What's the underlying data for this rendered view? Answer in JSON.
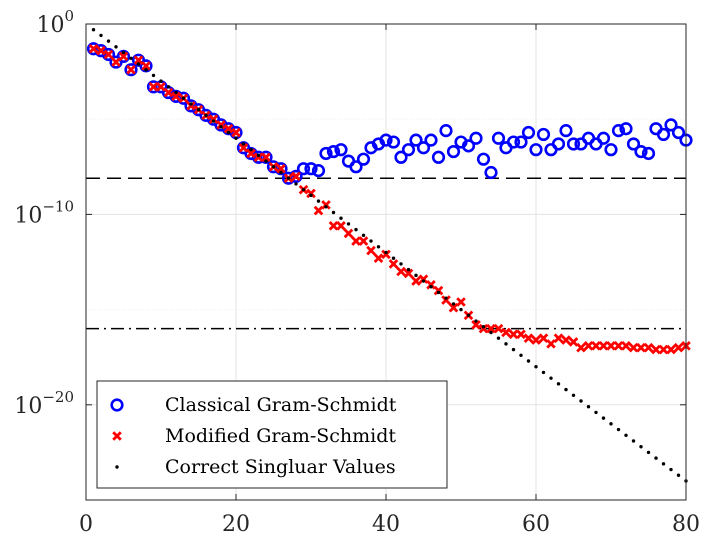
{
  "chart_data": {
    "type": "scatter",
    "title": "",
    "xlabel": "",
    "ylabel": "",
    "xlim": [
      0,
      80
    ],
    "ylim_log10": [
      -25,
      0
    ],
    "yscale": "log",
    "grid": true,
    "legend_position": "bottom-left",
    "x_ticks": [
      {
        "value": 0,
        "label": "0"
      },
      {
        "value": 20,
        "label": "20"
      },
      {
        "value": 40,
        "label": "40"
      },
      {
        "value": 60,
        "label": "60"
      },
      {
        "value": 80,
        "label": "80"
      }
    ],
    "y_ticks": [
      {
        "exp": 0,
        "base": "10",
        "sup": "0"
      },
      {
        "exp": -10,
        "base": "10",
        "sup": "−10"
      },
      {
        "exp": -20,
        "base": "10",
        "sup": "−20"
      }
    ],
    "reference_lines": [
      {
        "style": "dashed",
        "y_log10": -8.1
      },
      {
        "style": "dashdot",
        "y_log10": -16.0
      }
    ],
    "series": [
      {
        "name": "Classical Gram-Schmidt",
        "marker": "circle",
        "color": "#0000ff",
        "x": [
          1,
          2,
          3,
          4,
          5,
          6,
          7,
          8,
          9,
          10,
          11,
          12,
          13,
          14,
          15,
          16,
          17,
          18,
          19,
          20,
          21,
          22,
          23,
          24,
          25,
          26,
          27,
          28,
          29,
          30,
          31,
          32,
          33,
          34,
          35,
          36,
          37,
          38,
          39,
          40,
          41,
          42,
          43,
          44,
          45,
          46,
          47,
          48,
          49,
          50,
          51,
          52,
          53,
          54,
          55,
          56,
          57,
          58,
          59,
          60,
          61,
          62,
          63,
          64,
          65,
          66,
          67,
          68,
          69,
          70,
          71,
          72,
          73,
          74,
          75,
          76,
          77,
          78,
          79,
          80
        ],
        "y_log10": [
          -1.3,
          -1.4,
          -1.6,
          -2.0,
          -1.7,
          -2.4,
          -1.9,
          -2.2,
          -3.3,
          -3.3,
          -3.6,
          -3.8,
          -3.9,
          -4.3,
          -4.5,
          -4.8,
          -5.0,
          -5.3,
          -5.5,
          -5.7,
          -6.5,
          -6.8,
          -7.0,
          -7.0,
          -7.5,
          -7.6,
          -8.1,
          -8.0,
          -7.6,
          -7.6,
          -7.7,
          -6.8,
          -6.7,
          -6.6,
          -7.2,
          -7.5,
          -7.1,
          -6.5,
          -6.3,
          -6.1,
          -6.2,
          -7.0,
          -6.6,
          -6.1,
          -6.5,
          -6.1,
          -7.0,
          -5.6,
          -6.7,
          -6.2,
          -6.4,
          -6.0,
          -7.1,
          -7.8,
          -6.0,
          -6.5,
          -6.2,
          -6.2,
          -5.7,
          -6.6,
          -5.8,
          -6.6,
          -6.3,
          -5.6,
          -6.3,
          -6.3,
          -6.0,
          -6.3,
          -6.0,
          -6.6,
          -5.6,
          -5.5,
          -6.3,
          -6.7,
          -6.8,
          -5.5,
          -5.8,
          -5.3,
          -5.7,
          -6.1
        ]
      },
      {
        "name": "Modified Gram-Schmidt",
        "marker": "cross",
        "color": "#ff0000",
        "x": [
          1,
          2,
          3,
          4,
          5,
          6,
          7,
          8,
          9,
          10,
          11,
          12,
          13,
          14,
          15,
          16,
          17,
          18,
          19,
          20,
          21,
          22,
          23,
          24,
          25,
          26,
          27,
          28,
          29,
          30,
          31,
          32,
          33,
          34,
          35,
          36,
          37,
          38,
          39,
          40,
          41,
          42,
          43,
          44,
          45,
          46,
          47,
          48,
          49,
          50,
          51,
          52,
          53,
          54,
          55,
          56,
          57,
          58,
          59,
          60,
          61,
          62,
          63,
          64,
          65,
          66,
          67,
          68,
          69,
          70,
          71,
          72,
          73,
          74,
          75,
          76,
          77,
          78,
          79,
          80
        ],
        "y_log10": [
          -1.3,
          -1.4,
          -1.6,
          -2.0,
          -1.7,
          -2.4,
          -1.9,
          -2.2,
          -3.3,
          -3.3,
          -3.6,
          -3.8,
          -3.9,
          -4.3,
          -4.5,
          -4.8,
          -5.0,
          -5.3,
          -5.5,
          -5.7,
          -6.5,
          -6.8,
          -7.0,
          -7.0,
          -7.5,
          -7.6,
          -8.1,
          -8.0,
          -8.7,
          -8.9,
          -9.8,
          -9.5,
          -10.6,
          -10.6,
          -11.0,
          -11.4,
          -11.4,
          -11.9,
          -12.3,
          -12.1,
          -12.6,
          -13.0,
          -13.1,
          -13.5,
          -13.4,
          -13.7,
          -14.0,
          -14.5,
          -14.9,
          -14.6,
          -15.3,
          -15.8,
          -16.0,
          -16.0,
          -16.0,
          -16.2,
          -16.3,
          -16.3,
          -16.5,
          -16.6,
          -16.5,
          -16.8,
          -16.5,
          -16.6,
          -16.7,
          -17.0,
          -16.9,
          -16.9,
          -16.9,
          -16.9,
          -16.9,
          -16.9,
          -17.0,
          -17.0,
          -17.0,
          -17.1,
          -17.1,
          -17.1,
          -17.0,
          -16.9
        ]
      },
      {
        "name": "Correct Singluar Values",
        "marker": "dot",
        "color": "#000000",
        "x": [
          1,
          2,
          3,
          4,
          5,
          6,
          7,
          8,
          9,
          10,
          11,
          12,
          13,
          14,
          15,
          16,
          17,
          18,
          19,
          20,
          21,
          22,
          23,
          24,
          25,
          26,
          27,
          28,
          29,
          30,
          31,
          32,
          33,
          34,
          35,
          36,
          37,
          38,
          39,
          40,
          41,
          42,
          43,
          44,
          45,
          46,
          47,
          48,
          49,
          50,
          51,
          52,
          53,
          54,
          55,
          56,
          57,
          58,
          59,
          60,
          61,
          62,
          63,
          64,
          65,
          66,
          67,
          68,
          69,
          70,
          71,
          72,
          73,
          74,
          75,
          76,
          77,
          78,
          79,
          80
        ],
        "y_log10": [
          -0.3,
          -0.6,
          -0.9,
          -1.2,
          -1.5,
          -1.8,
          -2.1,
          -2.4,
          -2.7,
          -3.0,
          -3.3,
          -3.6,
          -3.9,
          -4.2,
          -4.5,
          -4.8,
          -5.1,
          -5.4,
          -5.7,
          -6.0,
          -6.3,
          -6.6,
          -6.9,
          -7.2,
          -7.5,
          -7.8,
          -8.1,
          -8.4,
          -8.7,
          -9.0,
          -9.3,
          -9.6,
          -9.9,
          -10.2,
          -10.5,
          -10.8,
          -11.1,
          -11.4,
          -11.7,
          -12.0,
          -12.3,
          -12.6,
          -12.9,
          -13.2,
          -13.5,
          -13.8,
          -14.1,
          -14.4,
          -14.7,
          -15.0,
          -15.3,
          -15.6,
          -15.9,
          -16.2,
          -16.5,
          -16.8,
          -17.1,
          -17.4,
          -17.7,
          -18.0,
          -18.3,
          -18.6,
          -18.9,
          -19.2,
          -19.5,
          -19.8,
          -20.1,
          -20.4,
          -20.7,
          -21.0,
          -21.3,
          -21.6,
          -21.9,
          -22.2,
          -22.5,
          -22.8,
          -23.1,
          -23.4,
          -23.7,
          -24.0
        ]
      }
    ]
  }
}
